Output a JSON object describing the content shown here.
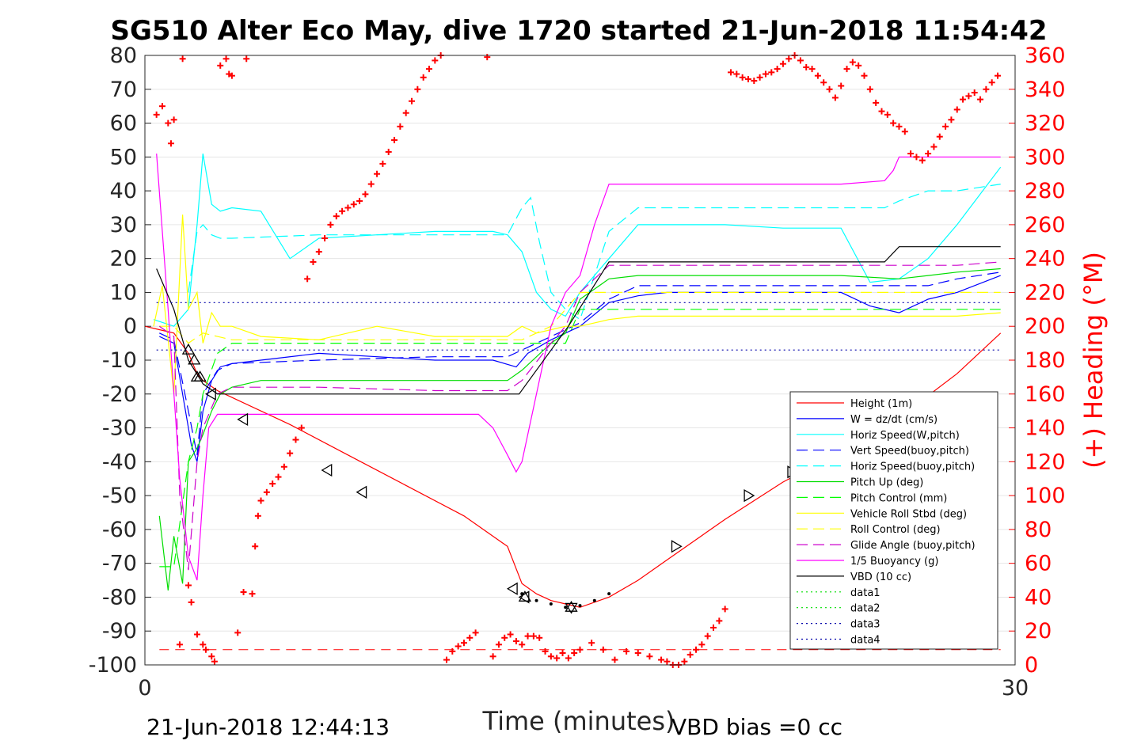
{
  "chart_data": {
    "type": "line",
    "title": "SG510 Alter Eco May, dive 1720 started 21-Jun-2018 11:54:42",
    "xlabel": "Time (minutes)",
    "ylabel_right": "(+) Heading (°M)",
    "footer_left": "21-Jun-2018 12:44:13",
    "footer_right": "VBD bias =0 cc",
    "xlim": [
      0,
      30
    ],
    "ylim": [
      -100,
      80
    ],
    "ylim_right": [
      0,
      360
    ],
    "x_ticks": [
      "0",
      "30"
    ],
    "y_ticks": [
      "80",
      "70",
      "60",
      "50",
      "40",
      "30",
      "20",
      "10",
      "0",
      "-10",
      "-20",
      "-30",
      "-40",
      "-50",
      "-60",
      "-70",
      "-80",
      "-90",
      "-100"
    ],
    "y_ticks_right": [
      "360",
      "340",
      "320",
      "300",
      "280",
      "260",
      "240",
      "220",
      "200",
      "180",
      "160",
      "140",
      "120",
      "100",
      "80",
      "60",
      "40",
      "20",
      "0"
    ],
    "grid": "horizontal",
    "legend_position": "bottom-right",
    "series": [
      {
        "name": "Height (1m)",
        "color": "#ff0000",
        "style": "solid",
        "x": [
          0,
          0.5,
          1,
          1.5,
          1.8,
          2,
          2.5,
          3,
          5,
          7,
          9,
          11,
          12.5,
          13,
          13.5,
          14,
          14.5,
          15,
          16,
          17,
          18,
          20,
          22,
          24,
          26,
          28,
          29.5
        ],
        "y": [
          0,
          -1,
          -2,
          -8,
          -14,
          -16,
          -19,
          -21,
          -29,
          -38,
          -47,
          -56,
          -65,
          -76,
          -79,
          -81,
          -82,
          -83,
          -80,
          -75,
          -69,
          -57,
          -46,
          -37,
          -27,
          -14,
          -2
        ]
      },
      {
        "name": "W = dz/dt (cm/s)",
        "color": "#0000ff",
        "style": "solid",
        "x": [
          0.5,
          1,
          1.3,
          1.6,
          1.8,
          2,
          2.3,
          2.6,
          3,
          4,
          6,
          8,
          10,
          12,
          12.8,
          13.2,
          14,
          14.5,
          15,
          16,
          17,
          18,
          20,
          22,
          24,
          25,
          26,
          27,
          28,
          29.5
        ],
        "y": [
          -3,
          -5,
          -20,
          -35,
          -40,
          -25,
          -16,
          -12,
          -11,
          -10,
          -8,
          -9,
          -10,
          -10,
          -12,
          -8,
          -4,
          -2,
          0,
          7,
          9,
          10,
          10,
          10,
          10,
          6,
          4,
          8,
          10,
          15
        ]
      },
      {
        "name": "Horiz Speed(W,pitch)",
        "color": "#00ffff",
        "style": "solid",
        "x": [
          0.3,
          1,
          1.5,
          1.8,
          2,
          2.3,
          2.6,
          3,
          4,
          5,
          6,
          8,
          10,
          12,
          12.5,
          13,
          13.5,
          14,
          14.5,
          15,
          16,
          17,
          18,
          20,
          22,
          24,
          25,
          26,
          27,
          28,
          29.5
        ],
        "y": [
          2,
          0,
          5,
          30,
          51,
          36,
          34,
          35,
          34,
          20,
          26,
          27,
          28,
          28,
          27,
          22,
          10,
          5,
          3,
          10,
          20,
          30,
          30,
          30,
          29,
          29,
          13,
          14,
          20,
          30,
          47
        ]
      },
      {
        "name": "Vert Speed(buoy,pitch)",
        "color": "#0000ff",
        "style": "dashed",
        "x": [
          0.5,
          1,
          1.5,
          1.8,
          2,
          2.5,
          3,
          6,
          10,
          12.5,
          13,
          14,
          14.5,
          15,
          16,
          17,
          18,
          20,
          24,
          26,
          27,
          28,
          29.5
        ],
        "y": [
          -2,
          -4,
          -25,
          -38,
          -20,
          -13,
          -11,
          -10,
          -9,
          -9,
          -7,
          -3,
          -1,
          1,
          8,
          12,
          12,
          12,
          12,
          12,
          12,
          14,
          16
        ]
      },
      {
        "name": "Horiz Speed(buoy,pitch)",
        "color": "#00ffff",
        "style": "dashed",
        "x": [
          1.5,
          1.8,
          2,
          2.3,
          2.6,
          3,
          6,
          10,
          12.5,
          13,
          13.3,
          13.6,
          14,
          14.5,
          15,
          16,
          17,
          18,
          20,
          24,
          25.5,
          26,
          27,
          28,
          29.5
        ],
        "y": [
          10,
          28,
          30,
          27,
          26,
          26,
          27,
          27,
          27,
          35,
          38,
          25,
          10,
          5,
          2,
          28,
          35,
          35,
          35,
          35,
          35,
          37,
          40,
          40,
          42
        ]
      },
      {
        "name": "Pitch Up (deg)",
        "color": "#00dd00",
        "style": "solid",
        "x": [
          0.5,
          0.8,
          1,
          1.3,
          1.5,
          1.8,
          2,
          2.3,
          2.6,
          3,
          4,
          6,
          10,
          12.5,
          13,
          14,
          14.5,
          15,
          16,
          17,
          18,
          20,
          24,
          26,
          27,
          28,
          29.5
        ],
        "y": [
          -56,
          -78,
          -62,
          -76,
          -40,
          -36,
          -32,
          -25,
          -20,
          -18,
          -16,
          -16,
          -16,
          -16,
          -13,
          -5,
          -2,
          8,
          14,
          15,
          15,
          15,
          15,
          14,
          15,
          16,
          17
        ]
      },
      {
        "name": "Pitch Control (mm)",
        "color": "#00ff00",
        "style": "dashed",
        "x": [
          0.5,
          1,
          1.5,
          1.8,
          2,
          2.5,
          3,
          6,
          10,
          12.5,
          13,
          14,
          14.5,
          15,
          16,
          17,
          20,
          24,
          26,
          28,
          29.5
        ],
        "y": [
          -71,
          -71,
          -40,
          -30,
          -20,
          -8,
          -5,
          -5,
          -5,
          -5,
          -5,
          -5,
          -5,
          5,
          5,
          5,
          5,
          5,
          5,
          5,
          5
        ]
      },
      {
        "name": "Vehicle Roll Stbd (deg)",
        "color": "#ffff00",
        "style": "solid",
        "x": [
          0.3,
          0.6,
          1,
          1.3,
          1.5,
          1.8,
          2,
          2.3,
          2.6,
          3,
          4,
          6,
          8,
          10,
          12.5,
          13,
          13.5,
          14,
          14.5,
          15,
          16,
          17,
          18,
          20,
          22,
          24,
          26,
          28,
          29.5
        ],
        "y": [
          0,
          12,
          -20,
          33,
          5,
          10,
          -5,
          4,
          0,
          0,
          -3,
          -4,
          0,
          -3,
          -3,
          0,
          -2,
          -1,
          0,
          0,
          2,
          3,
          3,
          3,
          3,
          3,
          3,
          3,
          4
        ]
      },
      {
        "name": "Roll Control (deg)",
        "color": "#ffff00",
        "style": "dashed",
        "x": [
          0.5,
          1,
          1.5,
          2,
          2.5,
          3,
          6,
          10,
          12.5,
          13,
          14,
          15,
          16,
          20,
          24,
          28,
          29.5
        ],
        "y": [
          0,
          0,
          -5,
          -2,
          -3,
          -4,
          -4,
          -4,
          -4,
          -4,
          0,
          10,
          10,
          10,
          10,
          10,
          10
        ]
      },
      {
        "name": "Glide Angle (buoy,pitch)",
        "color": "#cc00cc",
        "style": "dashed",
        "x": [
          0.5,
          1,
          1.2,
          1.5,
          1.8,
          2,
          2.5,
          3,
          6,
          10,
          12.5,
          13,
          14,
          14.5,
          15,
          16,
          17,
          18,
          20,
          24,
          26,
          28,
          29.5
        ],
        "y": [
          0,
          -3,
          -50,
          -72,
          -40,
          -30,
          -20,
          -18,
          -18,
          -19,
          -19,
          -16,
          -5,
          0,
          10,
          18,
          18,
          18,
          18,
          18,
          18,
          18,
          19
        ]
      },
      {
        "name": "1/5 Buoyancy (g)",
        "color": "#ff00ff",
        "style": "solid",
        "x": [
          0.4,
          0.8,
          1.2,
          1.5,
          1.8,
          2,
          2.2,
          2.5,
          3,
          6,
          10,
          11.5,
          12,
          12.5,
          12.8,
          13,
          13.5,
          14,
          14.5,
          15,
          15.5,
          16,
          17,
          18,
          20,
          24,
          25.5,
          25.8,
          26,
          28,
          29.5
        ],
        "y": [
          51,
          5,
          -45,
          -68,
          -75,
          -50,
          -30,
          -26,
          -26,
          -26,
          -26,
          -26,
          -30,
          -38,
          -43,
          -40,
          -20,
          0,
          10,
          15,
          30,
          42,
          42,
          42,
          42,
          42,
          43,
          46,
          50,
          50,
          50
        ]
      },
      {
        "name": "VBD (10 cc)",
        "color": "#000000",
        "style": "solid",
        "x": [
          0.4,
          1,
          1.5,
          2,
          2.5,
          6,
          10,
          12.9,
          14.6,
          16,
          18,
          24,
          25.5,
          26,
          28,
          29.5
        ],
        "y": [
          17,
          5,
          -10,
          -17,
          -20,
          -20,
          -20,
          -20,
          0,
          19,
          19,
          19,
          19,
          23.5,
          23.5,
          23.5
        ]
      },
      {
        "name": "data1",
        "color": "#00dd00",
        "style": "dotted",
        "x": [],
        "y": []
      },
      {
        "name": "data2",
        "color": "#00dd00",
        "style": "dotted",
        "x": [],
        "y": []
      },
      {
        "name": "data3",
        "color": "#0000aa",
        "style": "dotted",
        "x": [
          0.4,
          29.5
        ],
        "y": [
          7,
          7
        ]
      },
      {
        "name": "data4",
        "color": "#0000aa",
        "style": "dotted",
        "x": [
          0.4,
          29.5
        ],
        "y": [
          -7,
          -7
        ]
      }
    ],
    "reference_line": {
      "color": "#ff0000",
      "style": "dashed",
      "y": -95.5
    },
    "apogee_dots": {
      "color": "#000000",
      "x": [
        13,
        13.5,
        14,
        14.5,
        15,
        15.5,
        16
      ],
      "y": [
        -79,
        -81,
        -82,
        -83,
        -82.5,
        -81,
        -79
      ]
    },
    "markers": [
      {
        "shape": "up",
        "x": 1.5,
        "y": -7
      },
      {
        "shape": "up",
        "x": 1.7,
        "y": -10
      },
      {
        "shape": "up",
        "x": 1.8,
        "y": -15
      },
      {
        "shape": "up",
        "x": 1.9,
        "y": -15
      },
      {
        "shape": "left",
        "x": 2.3,
        "y": -20
      },
      {
        "shape": "left",
        "x": 3.4,
        "y": -27.5
      },
      {
        "shape": "left",
        "x": 6.3,
        "y": -42.5
      },
      {
        "shape": "left",
        "x": 7.5,
        "y": -49
      },
      {
        "shape": "left",
        "x": 12.7,
        "y": -77.5
      },
      {
        "shape": "left",
        "x": 13.1,
        "y": -80
      },
      {
        "shape": "up",
        "x": 13.1,
        "y": -80
      },
      {
        "shape": "down",
        "x": 14.7,
        "y": -83
      },
      {
        "shape": "up",
        "x": 14.7,
        "y": -83
      },
      {
        "shape": "right",
        "x": 18.3,
        "y": -65
      },
      {
        "shape": "right",
        "x": 20.8,
        "y": -50
      },
      {
        "shape": "right",
        "x": 22.3,
        "y": -43
      },
      {
        "shape": "right",
        "x": 22.9,
        "y": -38.5
      }
    ],
    "heading": {
      "color": "#ff0000",
      "x": [
        0.4,
        0.6,
        0.8,
        0.9,
        1.0,
        1.2,
        1.3,
        1.5,
        1.6,
        1.8,
        2.0,
        2.1,
        2.3,
        2.4,
        2.6,
        2.8,
        2.9,
        3.0,
        3.2,
        3.4,
        3.5,
        3.7,
        3.8,
        3.9,
        4.0,
        4.2,
        4.4,
        4.6,
        4.8,
        5.0,
        5.2,
        5.4,
        5.6,
        5.8,
        6.0,
        6.2,
        6.4,
        6.6,
        6.8,
        7.0,
        7.2,
        7.4,
        7.6,
        7.8,
        8.0,
        8.2,
        8.4,
        8.6,
        8.8,
        9.0,
        9.2,
        9.4,
        9.6,
        9.8,
        10.0,
        10.2,
        10.4,
        10.6,
        10.8,
        11.0,
        11.2,
        11.4,
        11.8,
        12.0,
        12.2,
        12.4,
        12.6,
        12.8,
        13.0,
        13.2,
        13.4,
        13.6,
        13.8,
        14.0,
        14.2,
        14.4,
        14.6,
        14.8,
        15.0,
        15.4,
        15.8,
        16.2,
        16.6,
        17.0,
        17.4,
        17.8,
        18.0,
        18.2,
        18.4,
        18.6,
        18.8,
        19.0,
        19.2,
        19.4,
        19.6,
        19.8,
        20.0,
        20.2,
        20.4,
        20.6,
        20.8,
        21.0,
        21.2,
        21.4,
        21.6,
        21.8,
        22.0,
        22.2,
        22.4,
        22.6,
        22.8,
        23.0,
        23.2,
        23.4,
        23.6,
        23.8,
        24.0,
        24.2,
        24.4,
        24.6,
        24.8,
        25.0,
        25.2,
        25.4,
        25.6,
        25.8,
        26.0,
        26.2,
        26.4,
        26.6,
        26.8,
        27.0,
        27.2,
        27.4,
        27.6,
        27.8,
        28.0,
        28.2,
        28.4,
        28.6,
        28.8,
        29.0,
        29.2,
        29.4
      ],
      "y": [
        325,
        330,
        320,
        308,
        322,
        12,
        358,
        47,
        37,
        18,
        12,
        9,
        5,
        2,
        354,
        358,
        349,
        348,
        19,
        43,
        358,
        42,
        70,
        88,
        97,
        102,
        107,
        111,
        117,
        125,
        133,
        140,
        228,
        238,
        244,
        252,
        260,
        265,
        268,
        270,
        272,
        274,
        278,
        284,
        290,
        296,
        303,
        310,
        318,
        326,
        333,
        340,
        347,
        352,
        357,
        360,
        3,
        8,
        11,
        13,
        16,
        19,
        359,
        5,
        12,
        16,
        18,
        14,
        12,
        17,
        17,
        16,
        8,
        5,
        4,
        7,
        4,
        7,
        9,
        13,
        9,
        3,
        8,
        7,
        5,
        3,
        2,
        0,
        0,
        2,
        6,
        9,
        12,
        17,
        22,
        26,
        33,
        350,
        349,
        347,
        346,
        345,
        347,
        349,
        350,
        352,
        355,
        358,
        360,
        357,
        353,
        352,
        348,
        344,
        340,
        335,
        342,
        352,
        356,
        354,
        348,
        340,
        332,
        327,
        325,
        320,
        318,
        315,
        302,
        300,
        298,
        302,
        306,
        312,
        318,
        322,
        328,
        334,
        336,
        338,
        334,
        340,
        344,
        348
      ],
      "ylim": [
        0,
        360
      ]
    }
  }
}
